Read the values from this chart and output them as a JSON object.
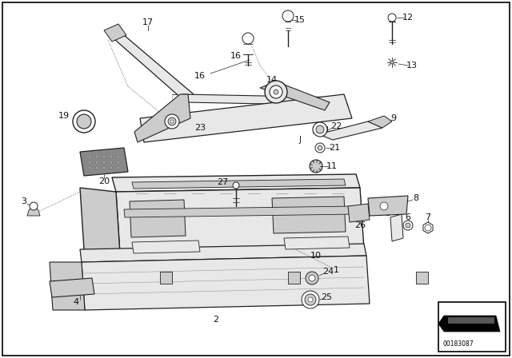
{
  "diagram_id": "00183087",
  "fig_width": 6.4,
  "fig_height": 4.48,
  "bg_color": "white",
  "border_color": "black",
  "line_color": "#222222",
  "fill_light": "#e8e8e8",
  "fill_mid": "#cccccc",
  "fill_dark": "#888888",
  "text_color": "#111111"
}
